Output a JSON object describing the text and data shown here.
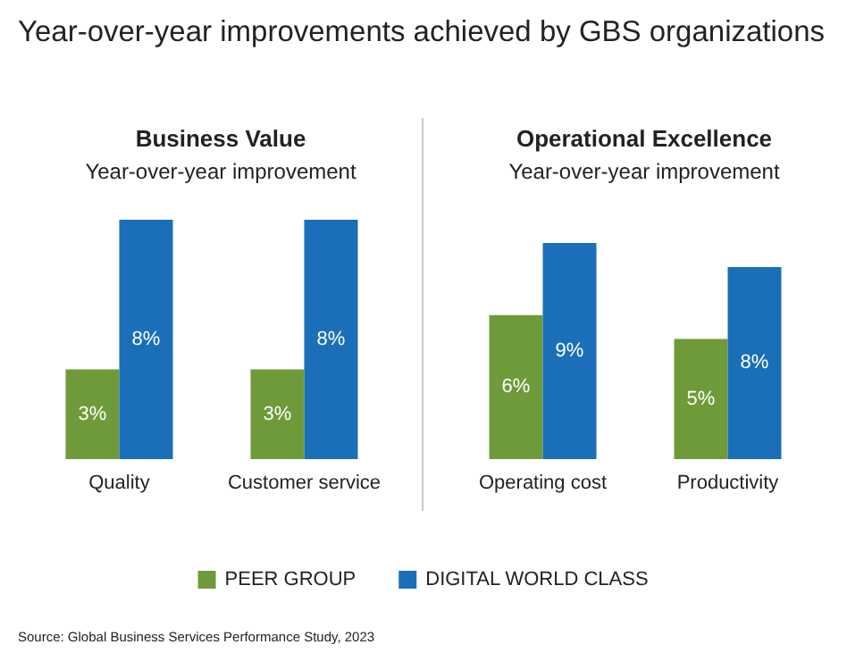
{
  "chart_data": [
    {
      "type": "bar",
      "title": "Business Value",
      "subtitle": "Year-over-year improvement",
      "categories": [
        "Quality",
        "Customer service"
      ],
      "series": [
        {
          "name": "PEER GROUP",
          "color": "#6f9a3a",
          "values": [
            3,
            3
          ],
          "value_labels": [
            "3%",
            "3%"
          ]
        },
        {
          "name": "DIGITAL WORLD CLASS",
          "color": "#1a6fb8",
          "values": [
            8,
            8
          ],
          "value_labels": [
            "8%",
            "8%"
          ]
        }
      ],
      "legend": "bottom",
      "annotations": [
        "Year-over-year improvements achieved by GBS organizations",
        "Source: Global Business Services Performance Study, 2023"
      ]
    },
    {
      "type": "bar",
      "title": "Operational Excellence",
      "subtitle": "Year-over-year improvement",
      "categories": [
        "Operating cost",
        "Productivity"
      ],
      "series": [
        {
          "color": "#6f9a3a",
          "values": [
            6,
            5
          ],
          "value_labels": [
            "6%",
            "5%"
          ]
        },
        {
          "color": "#1a6fb8",
          "values": [
            9,
            8
          ],
          "value_labels": [
            "9%",
            "8%"
          ]
        }
      ]
    }
  ]
}
